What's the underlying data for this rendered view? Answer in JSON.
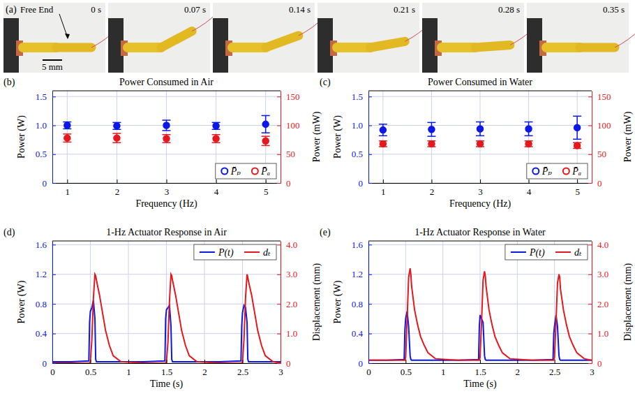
{
  "photo_strip": {
    "panel_label": "(a)",
    "annotation": "Free End",
    "scale_bar": "5 mm",
    "time_labels": [
      "0 s",
      "0.07 s",
      "0.14 s",
      "0.21 s",
      "0.28 s",
      "0.35 s"
    ]
  },
  "chart_data": [
    {
      "panel_label": "(b)",
      "type": "scatter",
      "title": "Power Consumed in Air",
      "x_label": "Frequency (Hz)",
      "y_label": "Power (W)",
      "y2_label": "Power (mW)",
      "x": [
        1,
        2,
        3,
        4,
        5
      ],
      "xlim": [
        0.7,
        5.3
      ],
      "xticks": [
        1,
        2,
        3,
        4,
        5
      ],
      "ylim": [
        0,
        1.6
      ],
      "yticks": [
        0,
        0.5,
        {
          "value": 1,
          "label": "1.0"
        },
        1.5
      ],
      "y2lim": [
        0,
        160
      ],
      "y2ticks": [
        0,
        50,
        100,
        150
      ],
      "grid": true,
      "legend": "lower right",
      "marker": "o",
      "series": [
        {
          "name": "P̄ₚ",
          "color": "#0b17e6",
          "values": [
            1.0,
            0.99,
            1.0,
            0.99,
            1.02
          ],
          "errors": [
            0.06,
            0.06,
            0.09,
            0.06,
            0.15
          ]
        },
        {
          "name": "P̄ₐ",
          "color": "#e4181d",
          "axis": "y2",
          "values": [
            78,
            78,
            77,
            77,
            73
          ],
          "errors": [
            7,
            8,
            7,
            7,
            8
          ]
        }
      ]
    },
    {
      "panel_label": "(c)",
      "type": "scatter",
      "title": "Power Consumed in Water",
      "x_label": "Frequency (Hz)",
      "y_label": "Power (W)",
      "y2_label": "Power (mW)",
      "x": [
        1,
        2,
        3,
        4,
        5
      ],
      "xlim": [
        0.7,
        5.3
      ],
      "xticks": [
        1,
        2,
        3,
        4,
        5
      ],
      "ylim": [
        0,
        1.6
      ],
      "yticks": [
        0,
        0.5,
        {
          "value": 1,
          "label": "1.0"
        },
        1.5
      ],
      "y2lim": [
        0,
        160
      ],
      "y2ticks": [
        0,
        50,
        100,
        150
      ],
      "grid": true,
      "legend": "lower right",
      "marker": "o",
      "series": [
        {
          "name": "P̄ₚ",
          "color": "#0b17e6",
          "values": [
            0.92,
            0.93,
            0.94,
            0.94,
            0.96
          ],
          "errors": [
            0.1,
            0.12,
            0.12,
            0.12,
            0.2
          ]
        },
        {
          "name": "P̄ₐ",
          "color": "#e4181d",
          "axis": "y2",
          "values": [
            68,
            68,
            68,
            68,
            65
          ],
          "errors": [
            5,
            5,
            5,
            5,
            5
          ]
        }
      ]
    },
    {
      "panel_label": "(d)",
      "type": "line",
      "title": "1-Hz Actuator Response in Air",
      "x_label": "Time (s)",
      "y_label": "Power (W)",
      "y2_label": "Displacement (mm)",
      "x": [
        0,
        0.25,
        0.48,
        0.49,
        0.5,
        0.52,
        0.54,
        0.56,
        0.57,
        0.58,
        0.62,
        0.66,
        0.7,
        0.75,
        0.8,
        0.9,
        1.2,
        1.48,
        1.49,
        1.5,
        1.52,
        1.54,
        1.56,
        1.57,
        1.58,
        1.62,
        1.66,
        1.7,
        1.75,
        1.8,
        1.9,
        2.2,
        2.48,
        2.49,
        2.5,
        2.52,
        2.54,
        2.56,
        2.57,
        2.58,
        2.62,
        2.66,
        2.7,
        2.75,
        2.8,
        2.9,
        3.0
      ],
      "xlim": [
        0,
        3
      ],
      "xticks": [
        0,
        0.5,
        1,
        1.5,
        2,
        2.5,
        3
      ],
      "ylim": [
        0,
        1.65
      ],
      "yticks": [
        0,
        0.4,
        0.8,
        1.2,
        1.6
      ],
      "y2lim": [
        0,
        4.125
      ],
      "y2ticks": [
        0,
        {
          "value": 1,
          "label": "1.0"
        },
        {
          "value": 2,
          "label": "2.0"
        },
        {
          "value": 3,
          "label": "3.0"
        },
        {
          "value": 4,
          "label": "4.0"
        }
      ],
      "grid": true,
      "legend": "upper right",
      "line_style": "solid",
      "series": [
        {
          "name": "P(t)",
          "color": "#0b17e6",
          "values": [
            0.02,
            0.02,
            0.03,
            0.55,
            0.7,
            0.75,
            0.85,
            0.6,
            0.05,
            0.02,
            0.02,
            0.02,
            0.02,
            0.02,
            0.02,
            0.02,
            0.02,
            0.03,
            0.6,
            0.72,
            0.75,
            0.78,
            0.5,
            0.05,
            0.02,
            0.02,
            0.02,
            0.02,
            0.02,
            0.02,
            0.02,
            0.02,
            0.03,
            0.5,
            0.68,
            0.78,
            0.75,
            0.55,
            0.05,
            0.02,
            0.02,
            0.02,
            0.02,
            0.02,
            0.02,
            0.02,
            0.02
          ]
        },
        {
          "name": "dₜ",
          "color": "#e4181d",
          "axis": "y2",
          "values": [
            0,
            0,
            0,
            0,
            0.05,
            0.8,
            2.2,
            3.0,
            2.95,
            2.8,
            2.3,
            1.7,
            1.1,
            0.6,
            0.25,
            0.05,
            0,
            0,
            0,
            0.05,
            0.7,
            2.1,
            3.0,
            2.95,
            2.8,
            2.3,
            1.7,
            1.1,
            0.6,
            0.25,
            0.05,
            0,
            0,
            0,
            0.05,
            0.8,
            2.2,
            3.0,
            2.9,
            2.75,
            2.3,
            1.7,
            1.1,
            0.6,
            0.25,
            0.05,
            0
          ]
        }
      ]
    },
    {
      "panel_label": "(e)",
      "type": "line",
      "title": "1-Hz Actuator Response in Water",
      "x_label": "Time (s)",
      "y_label": "Power (W)",
      "y2_label": "Displacement (mm)",
      "x": [
        0,
        0.25,
        0.48,
        0.49,
        0.5,
        0.52,
        0.54,
        0.56,
        0.57,
        0.58,
        0.62,
        0.66,
        0.7,
        0.75,
        0.8,
        0.9,
        1.2,
        1.48,
        1.49,
        1.5,
        1.52,
        1.54,
        1.56,
        1.57,
        1.58,
        1.62,
        1.66,
        1.7,
        1.75,
        1.8,
        1.9,
        2.2,
        2.48,
        2.49,
        2.5,
        2.52,
        2.54,
        2.56,
        2.57,
        2.58,
        2.62,
        2.66,
        2.7,
        2.75,
        2.8,
        2.9,
        3.0
      ],
      "xlim": [
        0,
        3
      ],
      "xticks": [
        0,
        0.5,
        1,
        1.5,
        2,
        2.5,
        3
      ],
      "ylim": [
        0,
        1.65
      ],
      "yticks": [
        0,
        0.4,
        0.8,
        1.2,
        1.6
      ],
      "y2lim": [
        0,
        4.125
      ],
      "y2ticks": [
        0,
        {
          "value": 1,
          "label": "1.0"
        },
        {
          "value": 2,
          "label": "2.0"
        },
        {
          "value": 3,
          "label": "3.0"
        },
        {
          "value": 4,
          "label": "4.0"
        }
      ],
      "grid": true,
      "legend": "upper right",
      "line_style": "solid",
      "series": [
        {
          "name": "P(t)",
          "color": "#0b17e6",
          "values": [
            0.04,
            0.04,
            0.05,
            0.45,
            0.6,
            0.7,
            0.5,
            0.1,
            0.05,
            0.04,
            0.04,
            0.04,
            0.04,
            0.04,
            0.04,
            0.04,
            0.04,
            0.05,
            0.5,
            0.65,
            0.6,
            0.55,
            0.1,
            0.05,
            0.04,
            0.04,
            0.04,
            0.04,
            0.04,
            0.04,
            0.04,
            0.04,
            0.05,
            0.4,
            0.5,
            0.65,
            0.5,
            0.1,
            0.05,
            0.04,
            0.04,
            0.04,
            0.04,
            0.04,
            0.04,
            0.04,
            0.04
          ]
        },
        {
          "name": "dₜ",
          "color": "#e4181d",
          "axis": "y2",
          "values": [
            0.1,
            0.1,
            0.1,
            0.1,
            0.2,
            1.5,
            2.9,
            3.2,
            3.0,
            2.6,
            1.8,
            1.3,
            0.9,
            0.6,
            0.35,
            0.15,
            0.1,
            0.1,
            0.1,
            0.2,
            1.4,
            2.8,
            3.1,
            2.95,
            2.6,
            1.8,
            1.3,
            0.9,
            0.6,
            0.35,
            0.15,
            0.1,
            0.1,
            0.1,
            0.2,
            1.4,
            2.7,
            3.0,
            2.9,
            2.5,
            1.8,
            1.3,
            0.9,
            0.6,
            0.35,
            0.15,
            0.1
          ]
        }
      ]
    }
  ]
}
